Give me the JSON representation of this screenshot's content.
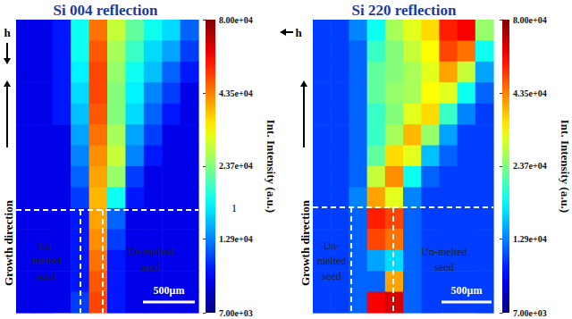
{
  "chart_data": [
    {
      "type": "heatmap",
      "title": "Si 004 reflection",
      "log": true,
      "cells": [
        [
          9000,
          9000,
          10000,
          18000,
          45000,
          28000,
          22000,
          18000,
          16000,
          12000
        ],
        [
          9000,
          9000,
          10000,
          18000,
          48000,
          26000,
          20000,
          16000,
          14000,
          11000
        ],
        [
          9000,
          9000,
          10000,
          17000,
          50000,
          25000,
          18000,
          15000,
          12000,
          10000
        ],
        [
          9000,
          9000,
          10000,
          16000,
          50000,
          24000,
          17000,
          13000,
          11000,
          9000
        ],
        [
          9000,
          9000,
          10000,
          15000,
          48000,
          24000,
          16000,
          12000,
          10000,
          9000
        ],
        [
          9000,
          9000,
          9000,
          14000,
          45000,
          26000,
          14000,
          11000,
          9000,
          9000
        ],
        [
          9000,
          9000,
          9000,
          13000,
          42000,
          28000,
          13000,
          10000,
          9000,
          9000
        ],
        [
          9000,
          9000,
          9000,
          12000,
          40000,
          25000,
          11000,
          9000,
          9000,
          9000
        ],
        [
          9000,
          9000,
          9000,
          11000,
          38000,
          18000,
          10000,
          9000,
          9000,
          9000
        ],
        [
          9000,
          9000,
          9000,
          10000,
          40000,
          12000,
          9000,
          9000,
          9000,
          9000
        ],
        [
          9000,
          9000,
          9000,
          10000,
          42000,
          11000,
          9000,
          9000,
          9000,
          9000
        ],
        [
          9000,
          9000,
          9000,
          10000,
          45000,
          10000,
          9000,
          9000,
          9000,
          9000
        ],
        [
          9000,
          9000,
          9000,
          10000,
          48000,
          10000,
          9000,
          9000,
          9000,
          9000
        ],
        [
          9000,
          9000,
          9000,
          11000,
          50000,
          10000,
          9000,
          9000,
          9000,
          9000
        ]
      ],
      "colorbar": {
        "title": "Int. Intensity (a.u.)",
        "range": [
          7000,
          80000
        ],
        "ticks": [
          {
            "value": 7000,
            "label": "7.00e+03"
          },
          {
            "value": 12900,
            "label": "1.29e+04"
          },
          {
            "value": 23700,
            "label": "2.37e+04"
          },
          {
            "value": 43500,
            "label": "4.35e+04"
          },
          {
            "value": 80000,
            "label": "8.00e+04"
          }
        ]
      },
      "annotations": {
        "direction": "h",
        "growth": "Growth direction",
        "seed_left": "Un-\nmelted\nseed",
        "seed_right": "Un-melted\nseed",
        "scale_bar": "500μm",
        "extra": "1"
      }
    },
    {
      "type": "heatmap",
      "title": "Si 220 reflection",
      "log": true,
      "cells": [
        [
          11000,
          11000,
          13000,
          18000,
          26000,
          30000,
          35000,
          55000,
          60000,
          25000
        ],
        [
          11000,
          11000,
          12000,
          20000,
          24000,
          28000,
          32000,
          50000,
          45000,
          18000
        ],
        [
          11000,
          11000,
          12000,
          22000,
          24000,
          26000,
          30000,
          40000,
          28000,
          14000
        ],
        [
          11000,
          11000,
          12000,
          22000,
          25000,
          26000,
          32000,
          30000,
          18000,
          12000
        ],
        [
          11000,
          11000,
          12000,
          20000,
          24000,
          30000,
          35000,
          20000,
          13000,
          11000
        ],
        [
          11000,
          11000,
          12000,
          20000,
          26000,
          38000,
          25000,
          14000,
          11000,
          11000
        ],
        [
          11000,
          11000,
          12000,
          22000,
          35000,
          30000,
          15000,
          12000,
          11000,
          11000
        ],
        [
          11000,
          11000,
          12000,
          28000,
          42000,
          18000,
          12000,
          11000,
          11000,
          11000
        ],
        [
          11000,
          11000,
          13000,
          40000,
          30000,
          13000,
          11000,
          11000,
          11000,
          11000
        ],
        [
          11000,
          11000,
          12000,
          55000,
          50000,
          12000,
          11000,
          11000,
          11000,
          11000
        ],
        [
          11000,
          11000,
          12000,
          50000,
          45000,
          12000,
          11000,
          11000,
          11000,
          11000
        ],
        [
          11000,
          11000,
          12000,
          14000,
          16000,
          12000,
          11000,
          11000,
          11000,
          11000
        ],
        [
          11000,
          11000,
          12000,
          12000,
          40000,
          12000,
          11000,
          11000,
          11000,
          11000
        ],
        [
          11000,
          11000,
          12000,
          60000,
          65000,
          12000,
          11000,
          11000,
          11000,
          11000
        ]
      ],
      "colorbar": {
        "title": "Int. Intensity (a.u.)",
        "range": [
          7000,
          80000
        ],
        "ticks": [
          {
            "value": 7000,
            "label": "7.00e+03"
          },
          {
            "value": 12900,
            "label": "1.29e+04"
          },
          {
            "value": 23700,
            "label": "2.37e+04"
          },
          {
            "value": 43500,
            "label": "4.35e+04"
          },
          {
            "value": 80000,
            "label": "8.00e+04"
          }
        ]
      },
      "annotations": {
        "direction": "h",
        "growth": "Growth direction",
        "seed_left": "Un-\nmelted\nseed",
        "seed_right": "Un-melted\nseed",
        "scale_bar": "500μm"
      }
    }
  ]
}
